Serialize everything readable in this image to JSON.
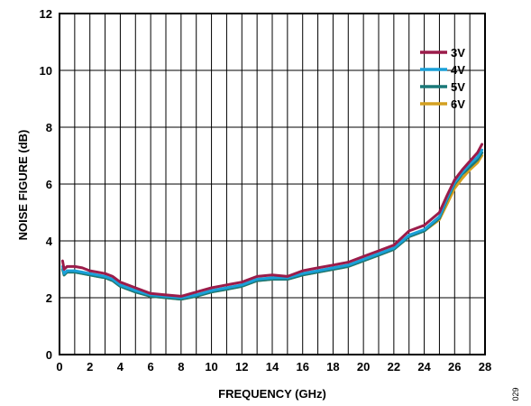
{
  "figure_id": "029",
  "chart_data": {
    "type": "line",
    "title": "",
    "xlabel": "FREQUENCY (GHz)",
    "ylabel": "NOISE FIGURE (dB)",
    "xlim": [
      0,
      28
    ],
    "ylim": [
      0,
      12
    ],
    "xticks": [
      0,
      2,
      4,
      6,
      8,
      10,
      12,
      14,
      16,
      18,
      20,
      22,
      24,
      26,
      28
    ],
    "yticks": [
      0,
      2,
      4,
      6,
      8,
      10,
      12
    ],
    "grid": true,
    "legend_position": "top-right",
    "x": [
      0.2,
      0.3,
      0.5,
      1,
      1.5,
      2,
      2.5,
      3,
      3.5,
      4,
      5,
      6,
      7,
      8,
      9,
      10,
      11,
      12,
      13,
      14,
      15,
      16,
      17,
      18,
      19,
      20,
      21,
      22,
      23,
      24,
      25,
      25.5,
      26,
      26.5,
      27,
      27.5,
      27.8
    ],
    "series": [
      {
        "name": "3V",
        "color": "#9b1c4a",
        "values": [
          3.3,
          3.0,
          3.1,
          3.1,
          3.05,
          2.95,
          2.9,
          2.85,
          2.75,
          2.55,
          2.35,
          2.15,
          2.1,
          2.05,
          2.2,
          2.35,
          2.45,
          2.55,
          2.75,
          2.8,
          2.75,
          2.95,
          3.05,
          3.15,
          3.25,
          3.45,
          3.65,
          3.85,
          4.35,
          4.55,
          5.0,
          5.6,
          6.15,
          6.5,
          6.8,
          7.1,
          7.4
        ]
      },
      {
        "name": "4V",
        "color": "#1aa0d8",
        "values": [
          3.1,
          2.85,
          2.95,
          2.95,
          2.9,
          2.85,
          2.8,
          2.75,
          2.65,
          2.45,
          2.25,
          2.1,
          2.05,
          2.0,
          2.1,
          2.25,
          2.35,
          2.45,
          2.65,
          2.7,
          2.7,
          2.85,
          2.95,
          3.05,
          3.15,
          3.35,
          3.55,
          3.75,
          4.2,
          4.4,
          4.85,
          5.5,
          6.05,
          6.4,
          6.7,
          6.95,
          7.2
        ]
      },
      {
        "name": "5V",
        "color": "#1a7878",
        "values": [
          3.0,
          2.8,
          2.9,
          2.9,
          2.85,
          2.8,
          2.75,
          2.7,
          2.6,
          2.4,
          2.2,
          2.05,
          2.0,
          1.95,
          2.05,
          2.2,
          2.3,
          2.4,
          2.6,
          2.65,
          2.65,
          2.8,
          2.9,
          3.0,
          3.1,
          3.3,
          3.5,
          3.7,
          4.15,
          4.35,
          4.8,
          5.45,
          6.0,
          6.35,
          6.6,
          6.85,
          7.1
        ]
      },
      {
        "name": "6V",
        "color": "#d4a020",
        "values": [
          3.0,
          2.8,
          2.9,
          2.9,
          2.85,
          2.8,
          2.75,
          2.7,
          2.6,
          2.4,
          2.2,
          2.05,
          2.0,
          1.95,
          2.05,
          2.2,
          2.3,
          2.4,
          2.6,
          2.65,
          2.65,
          2.8,
          2.9,
          3.0,
          3.1,
          3.3,
          3.5,
          3.7,
          4.15,
          4.35,
          4.75,
          5.3,
          5.85,
          6.2,
          6.5,
          6.75,
          7.0
        ]
      }
    ]
  }
}
